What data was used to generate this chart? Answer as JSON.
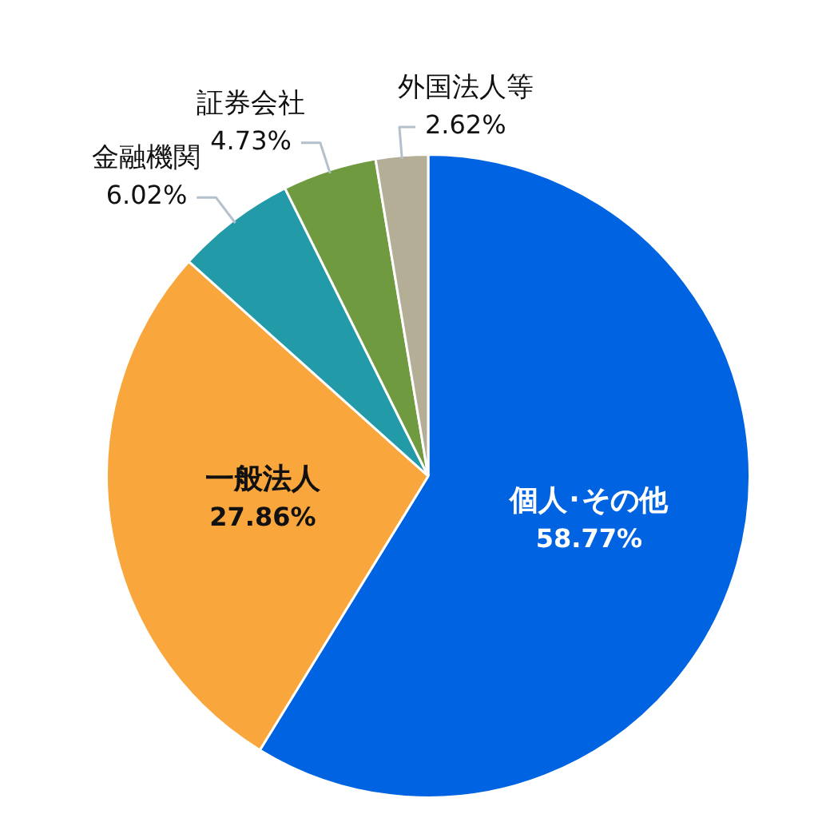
{
  "chart_data": {
    "type": "pie",
    "categories": [
      "個人･その他",
      "一般法人",
      "金融機関",
      "証券会社",
      "外国法人等"
    ],
    "values": [
      58.77,
      27.86,
      6.02,
      4.73,
      2.62
    ],
    "value_labels": [
      "58.77%",
      "27.86%",
      "6.02%",
      "4.73%",
      "2.62%"
    ],
    "colors": [
      "#0063e1",
      "#f9a63c",
      "#239aa8",
      "#6f9a3f",
      "#b5ae96"
    ]
  }
}
